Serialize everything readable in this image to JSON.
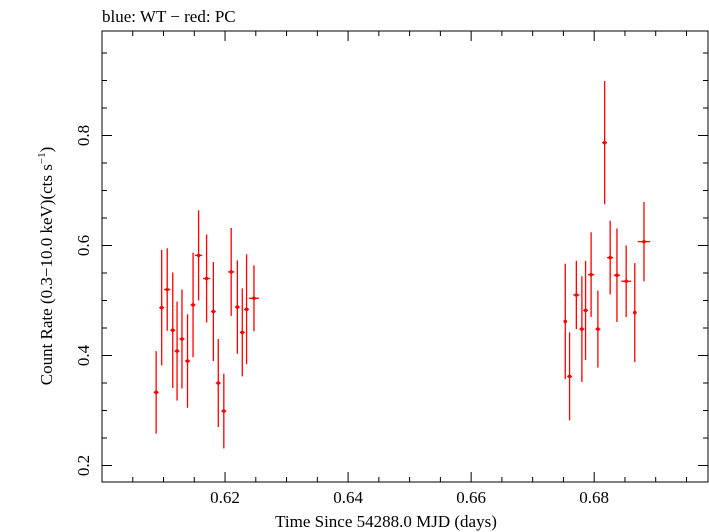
{
  "chart_data": {
    "type": "scatter",
    "title": "blue: WT − red: PC",
    "xlabel": "Time Since 54288.0 MJD (days)",
    "ylabel_main": "Count Rate (0.3−10.0 keV)(cts s",
    "ylabel_sup": "−1",
    "ylabel_close": ")",
    "xlim": [
      0.6,
      0.6985
    ],
    "ylim": [
      0.17,
      0.99
    ],
    "xticks": [
      0.62,
      0.64,
      0.66,
      0.68
    ],
    "xtick_labels": [
      "0.62",
      "0.64",
      "0.66",
      "0.68"
    ],
    "yticks": [
      0.2,
      0.4,
      0.6,
      0.8
    ],
    "ytick_labels": [
      "0.2",
      "0.4",
      "0.6",
      "0.8"
    ],
    "colors": {
      "pc": "#ff0000",
      "axis": "#000000"
    },
    "series": [
      {
        "name": "PC",
        "color": "#ff0000",
        "points": [
          {
            "x": 0.6088,
            "y": 0.333,
            "xerr": 0.0004,
            "yerr": 0.075
          },
          {
            "x": 0.6097,
            "y": 0.487,
            "xerr": 0.0004,
            "yerr": 0.105
          },
          {
            "x": 0.6106,
            "y": 0.52,
            "xerr": 0.0005,
            "yerr": 0.075
          },
          {
            "x": 0.6115,
            "y": 0.446,
            "xerr": 0.0004,
            "yerr": 0.105
          },
          {
            "x": 0.6122,
            "y": 0.408,
            "xerr": 0.0004,
            "yerr": 0.09
          },
          {
            "x": 0.613,
            "y": 0.43,
            "xerr": 0.0004,
            "yerr": 0.09
          },
          {
            "x": 0.6139,
            "y": 0.39,
            "xerr": 0.0004,
            "yerr": 0.085
          },
          {
            "x": 0.6148,
            "y": 0.492,
            "xerr": 0.0004,
            "yerr": 0.095
          },
          {
            "x": 0.6157,
            "y": 0.582,
            "xerr": 0.0006,
            "yerr": 0.082
          },
          {
            "x": 0.617,
            "y": 0.54,
            "xerr": 0.0006,
            "yerr": 0.08
          },
          {
            "x": 0.6181,
            "y": 0.48,
            "xerr": 0.0004,
            "yerr": 0.09
          },
          {
            "x": 0.6189,
            "y": 0.35,
            "xerr": 0.0004,
            "yerr": 0.08
          },
          {
            "x": 0.6198,
            "y": 0.299,
            "xerr": 0.0004,
            "yerr": 0.068
          },
          {
            "x": 0.621,
            "y": 0.552,
            "xerr": 0.0005,
            "yerr": 0.08
          },
          {
            "x": 0.622,
            "y": 0.488,
            "xerr": 0.0004,
            "yerr": 0.085
          },
          {
            "x": 0.6228,
            "y": 0.442,
            "xerr": 0.0004,
            "yerr": 0.08
          },
          {
            "x": 0.6235,
            "y": 0.484,
            "xerr": 0.0004,
            "yerr": 0.1
          },
          {
            "x": 0.6247,
            "y": 0.504,
            "xerr": 0.0008,
            "yerr": 0.06
          },
          {
            "x": 0.6753,
            "y": 0.462,
            "xerr": 0.0003,
            "yerr": 0.105
          },
          {
            "x": 0.676,
            "y": 0.362,
            "xerr": 0.0004,
            "yerr": 0.08
          },
          {
            "x": 0.6771,
            "y": 0.51,
            "xerr": 0.0005,
            "yerr": 0.062
          },
          {
            "x": 0.678,
            "y": 0.448,
            "xerr": 0.0004,
            "yerr": 0.096
          },
          {
            "x": 0.6786,
            "y": 0.482,
            "xerr": 0.0004,
            "yerr": 0.09
          },
          {
            "x": 0.6795,
            "y": 0.547,
            "xerr": 0.0005,
            "yerr": 0.077
          },
          {
            "x": 0.6806,
            "y": 0.448,
            "xerr": 0.0004,
            "yerr": 0.07
          },
          {
            "x": 0.6817,
            "y": 0.787,
            "xerr": 0.0004,
            "yerr": 0.112
          },
          {
            "x": 0.6826,
            "y": 0.578,
            "xerr": 0.0005,
            "yerr": 0.067
          },
          {
            "x": 0.6837,
            "y": 0.546,
            "xerr": 0.0005,
            "yerr": 0.085
          },
          {
            "x": 0.6852,
            "y": 0.535,
            "xerr": 0.0008,
            "yerr": 0.065
          },
          {
            "x": 0.6866,
            "y": 0.478,
            "xerr": 0.0003,
            "yerr": 0.09
          },
          {
            "x": 0.6881,
            "y": 0.607,
            "xerr": 0.001,
            "yerr": 0.072
          }
        ]
      }
    ]
  }
}
